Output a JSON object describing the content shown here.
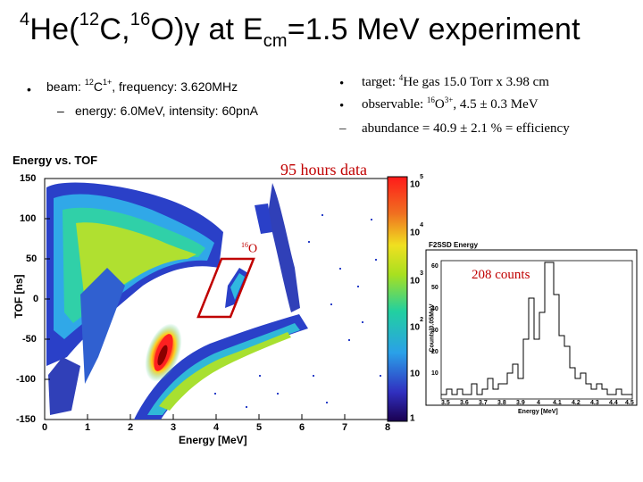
{
  "title": {
    "pre": "He(",
    "c_sup": "12",
    "mid": "C,",
    "o_sup": "16",
    "post": "O)γ at E",
    "sub": "cm",
    "tail": "=1.5 MeV experiment",
    "he_sup": "4"
  },
  "beam": {
    "bullet": "•",
    "line1_pre": "beam: ",
    "line1_sup": "12",
    "line1_c": "C",
    "line1_charge": "1+",
    "line1_post": ", frequency: 3.620MHz",
    "dash": "–",
    "line2": "energy: 6.0MeV, intensity: 60pnA"
  },
  "target": {
    "b1": "•",
    "t1_pre": "target: ",
    "t1_sup": "4",
    "t1_post": "He gas   15.0 Torr x 3.98 cm",
    "b2": "•",
    "t2_pre": "observable: ",
    "t2_sup": "16",
    "t2_o": "O",
    "t2_charge": "3+",
    "t2_post": ",  4.5 ± 0.3 MeV",
    "b3": "–",
    "t3": "abundance = 40.9 ± 2.1 % = efficiency"
  },
  "plot": {
    "title": "Energy vs. TOF",
    "xlabel": "Energy [MeV]",
    "ylabel": "TOF [ns]",
    "xticks": [
      "0",
      "1",
      "2",
      "3",
      "4",
      "5",
      "6",
      "7",
      "8"
    ],
    "yticks": [
      "150",
      "100",
      "50",
      "0",
      "-50",
      "-100",
      "-150"
    ],
    "colorbar_ticks": [
      {
        "base": "10",
        "exp": "5"
      },
      {
        "base": "10",
        "exp": "4"
      },
      {
        "base": "10",
        "exp": "3"
      },
      {
        "base": "10",
        "exp": "2"
      },
      {
        "base": "10",
        "exp": ""
      },
      {
        "base": "1",
        "exp": ""
      }
    ],
    "annotation_hours": "95 hours data",
    "annotation_o16_sup": "16",
    "annotation_o16": "O"
  },
  "inset": {
    "title": "F2SSD Energy",
    "xlabel": "Energy [MeV]",
    "ylabel": "Counts/0.05MeV",
    "xticks": [
      "3.5",
      "3.6",
      "3.7",
      "3.8",
      "3.9",
      "4",
      "4.1",
      "4.2",
      "4.3",
      "4.4",
      "4.5"
    ],
    "yticks": [
      "60",
      "50",
      "40",
      "30",
      "20",
      "10"
    ],
    "counts_label": "208 counts"
  },
  "colors": {
    "accent": "#c00000",
    "frame": "#ff0000"
  }
}
